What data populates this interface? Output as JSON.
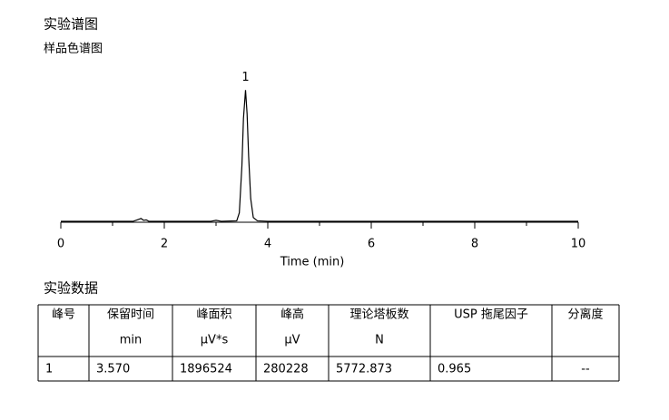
{
  "header": {
    "title": "实验谱图",
    "subtitle": "样品色谱图"
  },
  "chart_data": {
    "type": "line",
    "xlabel": "Time (min)",
    "x": [
      0,
      1.4,
      1.5,
      1.55,
      1.6,
      1.65,
      1.7,
      2.9,
      3.0,
      3.1,
      3.4,
      3.45,
      3.5,
      3.53,
      3.57,
      3.6,
      3.63,
      3.67,
      3.72,
      3.8,
      4.0,
      10
    ],
    "values": [
      2000,
      2000,
      6000,
      8000,
      4000,
      5000,
      2000,
      2000,
      4000,
      2000,
      3000,
      20000,
      120000,
      220000,
      280228,
      230000,
      140000,
      50000,
      10000,
      3000,
      2000,
      2000
    ],
    "color": "#000000",
    "xlim": [
      0,
      10
    ],
    "xticks": [
      0,
      2,
      4,
      6,
      8,
      10
    ],
    "xminorticks": [
      1,
      3,
      5,
      7,
      9
    ],
    "ylim": [
      0,
      300000
    ],
    "annotations": [
      {
        "x": 3.57,
        "text": "1"
      }
    ]
  },
  "table": {
    "title": "实验数据",
    "columns": [
      [
        "峰号"
      ],
      [
        "保留时间",
        "min"
      ],
      [
        "峰面积",
        "µV*s"
      ],
      [
        "峰高",
        "µV"
      ],
      [
        "理论塔板数",
        "N"
      ],
      [
        "USP 拖尾因子"
      ],
      [
        "分离度"
      ]
    ],
    "rows": [
      [
        "1",
        "3.570",
        "1896524",
        "280228",
        "5772.873",
        "0.965",
        "--"
      ]
    ]
  }
}
